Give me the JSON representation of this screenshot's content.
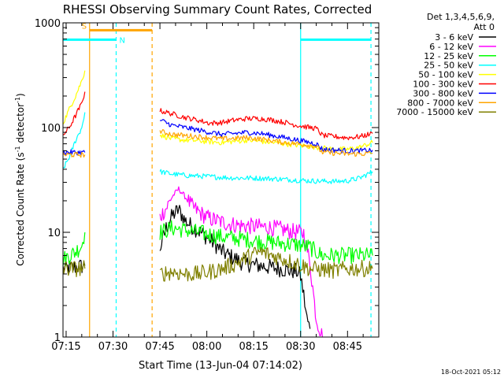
{
  "chart_data": {
    "type": "line",
    "title": "RHESSI Observing Summary Count Rates, Corrected",
    "xlabel": "Start Time (13-Jun-04 07:14:02)",
    "ylabel_main": "Corrected Count Rate (s",
    "ylabel_sup1": "-1",
    "ylabel_mid": " detector",
    "ylabel_sup2": "-1",
    "ylabel_end": ")",
    "yscale": "log",
    "ylim": [
      1,
      1000
    ],
    "xlim_minutes": [
      0,
      101
    ],
    "x_unit": "minutes after 07:14:02",
    "x_ticks": [
      {
        "value": 1,
        "label": "07:15"
      },
      {
        "value": 16,
        "label": "07:30"
      },
      {
        "value": 31,
        "label": "07:45"
      },
      {
        "value": 46,
        "label": "08:00"
      },
      {
        "value": 61,
        "label": "08:15"
      },
      {
        "value": 76,
        "label": "08:30"
      },
      {
        "value": 91,
        "label": "08:45"
      }
    ],
    "y_ticks": [
      {
        "value": 1,
        "label": "1"
      },
      {
        "value": 10,
        "label": "10"
      },
      {
        "value": 100,
        "label": "100"
      },
      {
        "value": 1000,
        "label": "1000"
      }
    ],
    "legend_header": [
      "Det 1,3,4,5,6,9,",
      "Att 0"
    ],
    "legend_position": "right",
    "series": [
      {
        "name": "3 - 6 keV",
        "color": "#000000",
        "segments": [
          {
            "x": [
              0,
              3,
              7
            ],
            "y": [
              4.5,
              4.6,
              4.8
            ]
          },
          {
            "x": [
              31,
              33,
              35,
              37,
              39,
              41,
              43,
              45,
              47,
              49,
              51,
              53,
              55,
              57,
              59,
              61,
              63,
              65,
              67,
              69,
              71,
              73,
              75,
              76,
              77,
              78,
              79
            ],
            "y": [
              7.0,
              11.0,
              14.5,
              16.5,
              13.0,
              11.5,
              10.5,
              9.5,
              8.5,
              7.5,
              6.5,
              6.0,
              5.6,
              5.2,
              5.0,
              4.9,
              4.8,
              4.7,
              4.6,
              4.5,
              4.4,
              4.3,
              4.2,
              3.8,
              2.5,
              1.5,
              1.2
            ]
          }
        ]
      },
      {
        "name": "6 - 12 keV",
        "color": "#ff00ff",
        "segments": [
          {
            "x": [
              31,
              33,
              35,
              37,
              39,
              41,
              43,
              45,
              47,
              49,
              51,
              53,
              55,
              57,
              59,
              61,
              63,
              65,
              67,
              69,
              71,
              73,
              75,
              77,
              79,
              81,
              83
            ],
            "y": [
              14.0,
              17.0,
              22.0,
              26.0,
              22.0,
              18.0,
              16.0,
              14.5,
              13.5,
              13.0,
              12.5,
              12.0,
              11.8,
              11.6,
              11.5,
              11.4,
              11.3,
              11.2,
              11.0,
              10.8,
              10.5,
              10.2,
              10.0,
              9.8,
              5.0,
              1.5,
              1.0
            ]
          }
        ]
      },
      {
        "name": "12 - 25 keV",
        "color": "#00ff00",
        "segments": [
          {
            "x": [
              0,
              2,
              4,
              6,
              7
            ],
            "y": [
              5.5,
              6.0,
              6.5,
              7.5,
              10.0
            ]
          },
          {
            "x": [
              31,
              35,
              39,
              43,
              47,
              51,
              55,
              59,
              63,
              67,
              71,
              75,
              79,
              81,
              83,
              87,
              91,
              95,
              99
            ],
            "y": [
              10.0,
              11.0,
              10.5,
              10.0,
              9.5,
              9.0,
              8.8,
              8.5,
              8.2,
              8.0,
              7.8,
              7.6,
              7.2,
              6.5,
              6.0,
              6.0,
              6.0,
              6.0,
              6.0
            ]
          }
        ]
      },
      {
        "name": "25 - 50 keV",
        "color": "#00ffff",
        "segments": [
          {
            "x": [
              0,
              2,
              4,
              6,
              7
            ],
            "y": [
              40.0,
              52.0,
              75.0,
              100.0,
              140.0
            ]
          },
          {
            "x": [
              31,
              35,
              39,
              43,
              47,
              51,
              55,
              59,
              63,
              67,
              71,
              75,
              79,
              83,
              87,
              91,
              95,
              99
            ],
            "y": [
              38.0,
              36.0,
              35.0,
              34.5,
              34.0,
              33.5,
              33.0,
              33.0,
              32.8,
              32.5,
              32.0,
              31.5,
              31.0,
              30.8,
              30.6,
              31.0,
              33.0,
              38.0
            ]
          }
        ]
      },
      {
        "name": "50 - 100 keV",
        "color": "#ffff00",
        "segments": [
          {
            "x": [
              0,
              2,
              4,
              6,
              7
            ],
            "y": [
              110.0,
              150.0,
              200.0,
              280.0,
              350.0
            ]
          },
          {
            "x": [
              31,
              35,
              39,
              43,
              47,
              51,
              55,
              59,
              63,
              67,
              71,
              75,
              79,
              83,
              87,
              91,
              95,
              99
            ],
            "y": [
              85.0,
              78.0,
              76.0,
              75.0,
              73.0,
              72.0,
              74.0,
              76.0,
              74.0,
              72.0,
              70.0,
              68.0,
              66.0,
              64.0,
              62.0,
              62.0,
              65.0,
              72.0
            ]
          }
        ]
      },
      {
        "name": "100 - 300 keV",
        "color": "#ff0000",
        "segments": [
          {
            "x": [
              0,
              2,
              4,
              6,
              7
            ],
            "y": [
              85.0,
              100.0,
              130.0,
              170.0,
              220.0
            ]
          },
          {
            "x": [
              31,
              35,
              39,
              43,
              47,
              51,
              55,
              59,
              63,
              67,
              71,
              75,
              79,
              81,
              83,
              87,
              91,
              95,
              99
            ],
            "y": [
              145.0,
              135.0,
              125.0,
              118.0,
              110.0,
              112.0,
              118.0,
              122.0,
              122.0,
              118.0,
              112.0,
              105.0,
              100.0,
              98.0,
              84.0,
              82.0,
              80.0,
              82.0,
              88.0
            ]
          }
        ]
      },
      {
        "name": "300 - 800 keV",
        "color": "#0000ff",
        "segments": [
          {
            "x": [
              0,
              2,
              4,
              6,
              7
            ],
            "y": [
              58.0,
              58.0,
              58.0,
              58.0,
              58.0
            ]
          },
          {
            "x": [
              31,
              35,
              39,
              43,
              47,
              51,
              55,
              59,
              63,
              67,
              71,
              75,
              79,
              81,
              83,
              87,
              91,
              95,
              99
            ],
            "y": [
              118.0,
              105.0,
              100.0,
              95.0,
              90.0,
              86.0,
              88.0,
              90.0,
              88.0,
              84.0,
              80.0,
              76.0,
              72.0,
              70.0,
              62.0,
              61.0,
              60.0,
              60.0,
              61.0
            ]
          }
        ]
      },
      {
        "name": "800 - 7000 keV",
        "color": "#ffa500",
        "segments": [
          {
            "x": [
              0,
              2,
              4,
              6,
              7
            ],
            "y": [
              55.0,
              55.0,
              55.0,
              55.0,
              55.0
            ]
          },
          {
            "x": [
              31,
              35,
              39,
              43,
              47,
              51,
              55,
              59,
              63,
              67,
              71,
              75,
              79,
              81,
              83,
              87,
              91,
              95,
              99
            ],
            "y": [
              92.0,
              86.0,
              84.0,
              82.0,
              80.0,
              78.0,
              79.0,
              80.0,
              78.0,
              75.0,
              72.0,
              70.0,
              68.0,
              66.0,
              58.0,
              57.0,
              56.0,
              56.0,
              57.0
            ]
          }
        ]
      },
      {
        "name": "7000 - 15000 keV",
        "color": "#808000",
        "segments": [
          {
            "x": [
              0,
              2,
              4,
              6,
              7
            ],
            "y": [
              4.5,
              4.5,
              4.5,
              4.5,
              4.5
            ]
          },
          {
            "x": [
              31,
              35,
              39,
              43,
              47,
              51,
              55,
              59,
              63,
              67,
              71,
              75,
              79,
              83,
              87,
              91,
              95,
              99
            ],
            "y": [
              4.0,
              4.2,
              4.0,
              4.0,
              4.2,
              4.5,
              5.0,
              5.8,
              6.5,
              6.0,
              5.5,
              5.0,
              4.5,
              4.4,
              4.3,
              4.5,
              4.5,
              4.5
            ]
          }
        ]
      }
    ],
    "markers": [
      {
        "x": 8.5,
        "color": "#ffa500",
        "style": "solid"
      },
      {
        "x": 17.0,
        "color": "#00ffff",
        "style": "dashed"
      },
      {
        "x": 28.5,
        "color": "#ffa500",
        "style": "dashed"
      },
      {
        "x": 76.0,
        "color": "#00ffff",
        "style": "solid"
      },
      {
        "x": 98.5,
        "color": "#00ffff",
        "style": "dashed"
      }
    ],
    "flag_bars": [
      {
        "label": "S",
        "x_start": 8.5,
        "x_end": 28.5,
        "y_level": 850,
        "color": "#ffa500"
      },
      {
        "label": "N",
        "x_start": 0,
        "x_end": 17.0,
        "y_level": 690,
        "color": "#00ffff"
      },
      {
        "label": "",
        "x_start": 76.0,
        "x_end": 98.5,
        "y_level": 690,
        "color": "#00ffff"
      }
    ],
    "grid": false
  },
  "footer": {
    "timestamp": "18-Oct-2021 05:12"
  }
}
